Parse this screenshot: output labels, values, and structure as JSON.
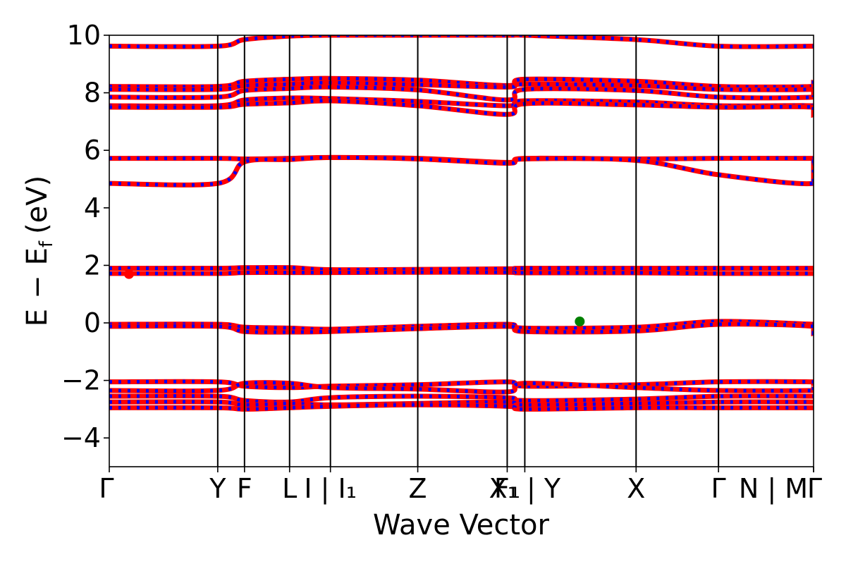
{
  "chart_data": {
    "type": "line",
    "title": "",
    "xlabel": "Wave Vector",
    "ylabel": "E − E_f (eV)",
    "ylabel_parts": {
      "e": "E",
      "minus": "−",
      "ef": "E",
      "sub": "f",
      "unit": "(eV)"
    },
    "ylim": [
      -5,
      10
    ],
    "yticks": [
      -4,
      -2,
      0,
      2,
      4,
      6,
      8,
      10
    ],
    "ytick_labels": [
      "−4",
      "−2",
      "0",
      "2",
      "4",
      "6",
      "8",
      "10"
    ],
    "k_path_length": 1.0,
    "kpoints": [
      {
        "x": 0.0,
        "label": "Γ"
      },
      {
        "x": 0.154,
        "label": "Y"
      },
      {
        "x": 0.192,
        "label": "F"
      },
      {
        "x": 0.256,
        "label": "L"
      },
      {
        "x": 0.314,
        "label": "I | I₁"
      },
      {
        "x": 0.438,
        "label": "Z"
      },
      {
        "x": 0.565,
        "label": "F₁"
      },
      {
        "x": 0.59,
        "label": "X₁ | Y"
      },
      {
        "x": 0.748,
        "label": "X"
      },
      {
        "x": 0.865,
        "label": "Γ"
      },
      {
        "x": 1.0,
        "label": "N | M"
      },
      {
        "x": 1.0,
        "label": "Γ"
      }
    ],
    "series_style": {
      "line_color": "#ff0000",
      "dash_color": "#0000ff"
    },
    "bands": [
      [
        9.62,
        9.62,
        9.85,
        9.97,
        10.0,
        10.0,
        10.0,
        10.0,
        9.85,
        9.62,
        9.62,
        9.62,
        9.62
      ],
      [
        8.22,
        8.22,
        8.4,
        8.47,
        8.5,
        8.44,
        8.25,
        8.47,
        8.4,
        8.22,
        8.22,
        8.35,
        8.22
      ],
      [
        8.12,
        8.12,
        8.25,
        8.3,
        8.35,
        8.28,
        8.2,
        8.3,
        8.25,
        8.12,
        8.12,
        8.22,
        8.12
      ],
      [
        7.85,
        7.85,
        8.08,
        8.15,
        8.2,
        8.1,
        7.75,
        8.12,
        8.08,
        7.85,
        7.85,
        8.05,
        7.85
      ],
      [
        7.55,
        7.55,
        7.75,
        7.82,
        7.8,
        7.7,
        7.55,
        7.72,
        7.68,
        7.55,
        7.55,
        7.45,
        7.55
      ],
      [
        7.5,
        7.5,
        7.6,
        7.65,
        7.72,
        7.55,
        7.25,
        7.62,
        7.58,
        7.5,
        7.5,
        7.25,
        7.5
      ],
      [
        5.72,
        5.72,
        5.7,
        5.72,
        5.75,
        5.72,
        5.58,
        5.72,
        5.7,
        5.72,
        5.72,
        5.68,
        5.72
      ],
      [
        4.85,
        4.85,
        5.6,
        5.68,
        5.75,
        5.7,
        5.55,
        5.7,
        5.65,
        5.15,
        4.85,
        5.55,
        4.85
      ],
      [
        1.9,
        1.9,
        1.92,
        1.92,
        1.85,
        1.86,
        1.88,
        1.9,
        1.9,
        1.9,
        1.9,
        1.9,
        1.9
      ],
      [
        1.72,
        1.72,
        1.75,
        1.75,
        1.75,
        1.76,
        1.76,
        1.74,
        1.74,
        1.72,
        1.72,
        1.72,
        1.72
      ],
      [
        -0.05,
        -0.05,
        -0.15,
        -0.18,
        -0.22,
        -0.12,
        -0.05,
        -0.18,
        -0.15,
        0.05,
        -0.05,
        -0.08,
        -0.05
      ],
      [
        -0.12,
        -0.12,
        -0.3,
        -0.32,
        -0.3,
        -0.2,
        -0.12,
        -0.3,
        -0.28,
        -0.05,
        -0.12,
        -0.35,
        -0.12
      ],
      [
        -2.05,
        -2.05,
        -2.2,
        -2.25,
        -2.2,
        -2.15,
        -2.05,
        -2.2,
        -2.15,
        -2.05,
        -2.05,
        -2.1,
        -2.05
      ],
      [
        -2.35,
        -2.35,
        -2.1,
        -2.1,
        -2.25,
        -2.3,
        -2.4,
        -2.1,
        -2.25,
        -2.35,
        -2.35,
        -2.3,
        -2.35
      ],
      [
        -2.55,
        -2.55,
        -2.7,
        -2.75,
        -2.6,
        -2.55,
        -2.6,
        -2.7,
        -2.65,
        -2.55,
        -2.55,
        -2.55,
        -2.55
      ],
      [
        -2.75,
        -2.75,
        -2.85,
        -2.8,
        -2.85,
        -2.8,
        -2.75,
        -2.85,
        -2.8,
        -2.75,
        -2.75,
        -2.75,
        -2.75
      ],
      [
        -2.95,
        -2.95,
        -3.0,
        -2.95,
        -2.9,
        -2.85,
        -2.9,
        -3.0,
        -2.95,
        -2.95,
        -2.95,
        -2.95,
        -2.95
      ]
    ],
    "markers": [
      {
        "name": "cbm-marker",
        "x": 0.028,
        "y": 1.7,
        "color": "#ff0000"
      },
      {
        "name": "vbm-marker",
        "x": 0.668,
        "y": 0.05,
        "color": "#008000"
      }
    ]
  }
}
